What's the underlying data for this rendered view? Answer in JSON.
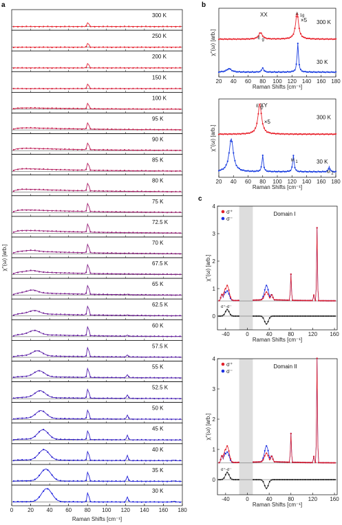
{
  "panel_labels": {
    "a": "a",
    "b": "b",
    "c": "c"
  },
  "chart_data": [
    {
      "id": "a",
      "type": "line",
      "xlabel": "Raman Shifts [cm⁻¹]",
      "ylabel": "χ''(ω) [arb.]",
      "xlim": [
        0,
        180
      ],
      "xticks": [
        "0",
        "20",
        "40",
        "60",
        "80",
        "100",
        "120",
        "140",
        "160",
        "180"
      ],
      "series": [
        {
          "name": "300 K",
          "color": "#e8202a",
          "continuum": 0.0,
          "low_peak": 0.0,
          "low_pos": 30,
          "p80": 0.45,
          "p122": 0.0,
          "p170": 0.0
        },
        {
          "name": "250 K",
          "color": "#e5202e",
          "continuum": 0.0,
          "low_peak": 0.0,
          "low_pos": 30,
          "p80": 0.45,
          "p122": 0.0,
          "p170": 0.0
        },
        {
          "name": "200 K",
          "color": "#e02034",
          "continuum": 0.0,
          "low_peak": 0.0,
          "low_pos": 30,
          "p80": 0.5,
          "p122": 0.0,
          "p170": 0.0
        },
        {
          "name": "150 K",
          "color": "#d9203c",
          "continuum": 0.0,
          "low_peak": 0.0,
          "low_pos": 30,
          "p80": 0.5,
          "p122": 0.0,
          "p170": 0.0
        },
        {
          "name": "100 K",
          "color": "#d02046",
          "continuum": 0.35,
          "low_peak": 0.0,
          "low_pos": 30,
          "p80": 0.6,
          "p122": 0.0,
          "p170": 0.0
        },
        {
          "name": "95 K",
          "color": "#c72050",
          "continuum": 0.55,
          "low_peak": 0.0,
          "low_pos": 30,
          "p80": 0.7,
          "p122": 0.0,
          "p170": 0.0
        },
        {
          "name": "90 K",
          "color": "#be2058",
          "continuum": 0.6,
          "low_peak": 0.0,
          "low_pos": 30,
          "p80": 0.75,
          "p122": 0.0,
          "p170": 0.0
        },
        {
          "name": "85 K",
          "color": "#b52060",
          "continuum": 0.65,
          "low_peak": 0.0,
          "low_pos": 30,
          "p80": 0.8,
          "p122": 0.0,
          "p170": 0.0
        },
        {
          "name": "80 K",
          "color": "#ab2068",
          "continuum": 0.7,
          "low_peak": 0.0,
          "low_pos": 30,
          "p80": 0.85,
          "p122": 0.0,
          "p170": 0.0
        },
        {
          "name": "75 K",
          "color": "#a12070",
          "continuum": 0.7,
          "low_peak": 0.0,
          "low_pos": 30,
          "p80": 0.9,
          "p122": 0.0,
          "p170": 0.0
        },
        {
          "name": "72.5 K",
          "color": "#982078",
          "continuum": 0.75,
          "low_peak": 0.0,
          "low_pos": 30,
          "p80": 0.9,
          "p122": 0.0,
          "p170": 0.0
        },
        {
          "name": "70 K",
          "color": "#8e2080",
          "continuum": 0.75,
          "low_peak": 0.1,
          "low_pos": 22,
          "p80": 0.95,
          "p122": 0.0,
          "p170": 0.0
        },
        {
          "name": "67.5 K",
          "color": "#842088",
          "continuum": 0.75,
          "low_peak": 0.15,
          "low_pos": 22,
          "p80": 1.0,
          "p122": 0.0,
          "p170": 0.0
        },
        {
          "name": "65 K",
          "color": "#7a2090",
          "continuum": 0.7,
          "low_peak": 0.3,
          "low_pos": 22,
          "p80": 1.0,
          "p122": 0.05,
          "p170": 0.0
        },
        {
          "name": "62.5 K",
          "color": "#702098",
          "continuum": 0.65,
          "low_peak": 0.35,
          "low_pos": 24,
          "p80": 1.0,
          "p122": 0.05,
          "p170": 0.0
        },
        {
          "name": "60 K",
          "color": "#6620a0",
          "continuum": 0.6,
          "low_peak": 0.45,
          "low_pos": 24,
          "p80": 1.0,
          "p122": 0.1,
          "p170": 0.0
        },
        {
          "name": "57.5 K",
          "color": "#5c20a8",
          "continuum": 0.45,
          "low_peak": 0.55,
          "low_pos": 27,
          "p80": 1.0,
          "p122": 0.2,
          "p170": 0.0
        },
        {
          "name": "55 K",
          "color": "#5220b0",
          "continuum": 0.4,
          "low_peak": 0.65,
          "low_pos": 29,
          "p80": 1.0,
          "p122": 0.3,
          "p170": 0.0
        },
        {
          "name": "52.5 K",
          "color": "#4820b8",
          "continuum": 0.35,
          "low_peak": 0.75,
          "low_pos": 30,
          "p80": 1.0,
          "p122": 0.35,
          "p170": 0.0
        },
        {
          "name": "50 K",
          "color": "#3e20c0",
          "continuum": 0.3,
          "low_peak": 0.85,
          "low_pos": 31,
          "p80": 1.0,
          "p122": 0.4,
          "p170": 0.0
        },
        {
          "name": "45 K",
          "color": "#3420c8",
          "continuum": 0.25,
          "low_peak": 1.05,
          "low_pos": 33,
          "p80": 1.0,
          "p122": 0.45,
          "p170": 0.0
        },
        {
          "name": "40 K",
          "color": "#2a20d0",
          "continuum": 0.2,
          "low_peak": 1.15,
          "low_pos": 34,
          "p80": 1.0,
          "p122": 0.5,
          "p170": 0.05
        },
        {
          "name": "35 K",
          "color": "#2020d8",
          "continuum": 0.15,
          "low_peak": 1.3,
          "low_pos": 36,
          "p80": 1.0,
          "p122": 0.5,
          "p170": 0.05
        },
        {
          "name": "30 K",
          "color": "#1a1ee0",
          "continuum": 0.1,
          "low_peak": 1.45,
          "low_pos": 37,
          "p80": 1.0,
          "p122": 0.5,
          "p170": 0.08
        }
      ]
    },
    {
      "id": "b-xx",
      "type": "line",
      "title": "XX",
      "xlabel": "Raman Shifts [cm⁻¹]",
      "ylabel": "χ''(ω) [arb.]",
      "xlim": [
        20,
        180
      ],
      "xticks": [
        "20",
        "40",
        "60",
        "80",
        "100",
        "120",
        "140",
        "160",
        "180"
      ],
      "annotations": {
        "eg": "E",
        "eg_sub": "g",
        "a1g": "A",
        "a1g_sub": "1g",
        "x5": "×5"
      },
      "series": [
        {
          "name": "300 K",
          "color": "#e8202a",
          "peaks": [
            [
              77,
              0.25,
              3
            ],
            [
              127,
              1.0,
              2.5
            ]
          ]
        },
        {
          "name": "30 K",
          "color": "#1a3ee0",
          "peaks": [
            [
              34,
              0.12,
              4
            ],
            [
              80,
              0.15,
              1.5
            ],
            [
              128,
              1.0,
              1.2
            ]
          ]
        }
      ]
    },
    {
      "id": "b-xy",
      "type": "line",
      "title": "XY",
      "xlabel": "Raman Shifts [cm⁻¹]",
      "ylabel": "χ''(ω) [arb.]",
      "xlim": [
        20,
        180
      ],
      "xticks": [
        "20",
        "40",
        "60",
        "80",
        "100",
        "120",
        "140",
        "160",
        "180"
      ],
      "annotations": {
        "eg": "E",
        "eg_sub": "g",
        "x5": "×5",
        "m1": "M",
        "m1_sub": "1",
        "m2": "M",
        "m2_sub": "2"
      },
      "series": [
        {
          "name": "300 K",
          "color": "#e8202a",
          "peaks": [
            [
              76,
              1.0,
              3
            ]
          ]
        },
        {
          "name": "30 K",
          "color": "#1a3ee0",
          "peaks": [
            [
              37,
              1.0,
              3.5
            ],
            [
              80,
              0.5,
              1.2
            ],
            [
              122,
              0.5,
              1.2
            ],
            [
              171,
              0.15,
              1.2
            ]
          ]
        }
      ]
    },
    {
      "id": "c-domain1",
      "type": "line",
      "title": "Domain I",
      "xlabel": "Raman Shifts [cm⁻¹]",
      "ylabel": "χ''(ω) [arb.]",
      "xlim": [
        -55,
        165
      ],
      "ylim": [
        -0.5,
        4
      ],
      "xticks": [
        "-40",
        "0",
        "40",
        "80",
        "120",
        "160"
      ],
      "yticks": [
        "0",
        "1",
        "2",
        "3",
        "4"
      ],
      "legend": [
        "σ⁺",
        "σ⁻"
      ],
      "diff_label": "σ⁺-σ⁻",
      "series": [
        {
          "name": "σ⁺",
          "color": "#e0202a"
        },
        {
          "name": "σ⁻",
          "color": "#1a2ee0"
        },
        {
          "name": "σ⁺-σ⁻",
          "color": "#222222"
        }
      ]
    },
    {
      "id": "c-domain2",
      "type": "line",
      "title": "Domain II",
      "xlabel": "Raman Shifts [cm⁻¹]",
      "ylabel": "χ''(ω) [arb.]",
      "xlim": [
        -55,
        165
      ],
      "ylim": [
        -0.5,
        4
      ],
      "xticks": [
        "-40",
        "0",
        "40",
        "80",
        "120",
        "160"
      ],
      "yticks": [
        "0",
        "1",
        "2",
        "3",
        "4"
      ],
      "legend": [
        "σ⁺",
        "σ⁻"
      ],
      "diff_label": "σ⁺-σ⁻",
      "series": [
        {
          "name": "σ⁺",
          "color": "#e0202a"
        },
        {
          "name": "σ⁻",
          "color": "#1a2ee0"
        },
        {
          "name": "σ⁺-σ⁻",
          "color": "#222222"
        }
      ]
    }
  ]
}
